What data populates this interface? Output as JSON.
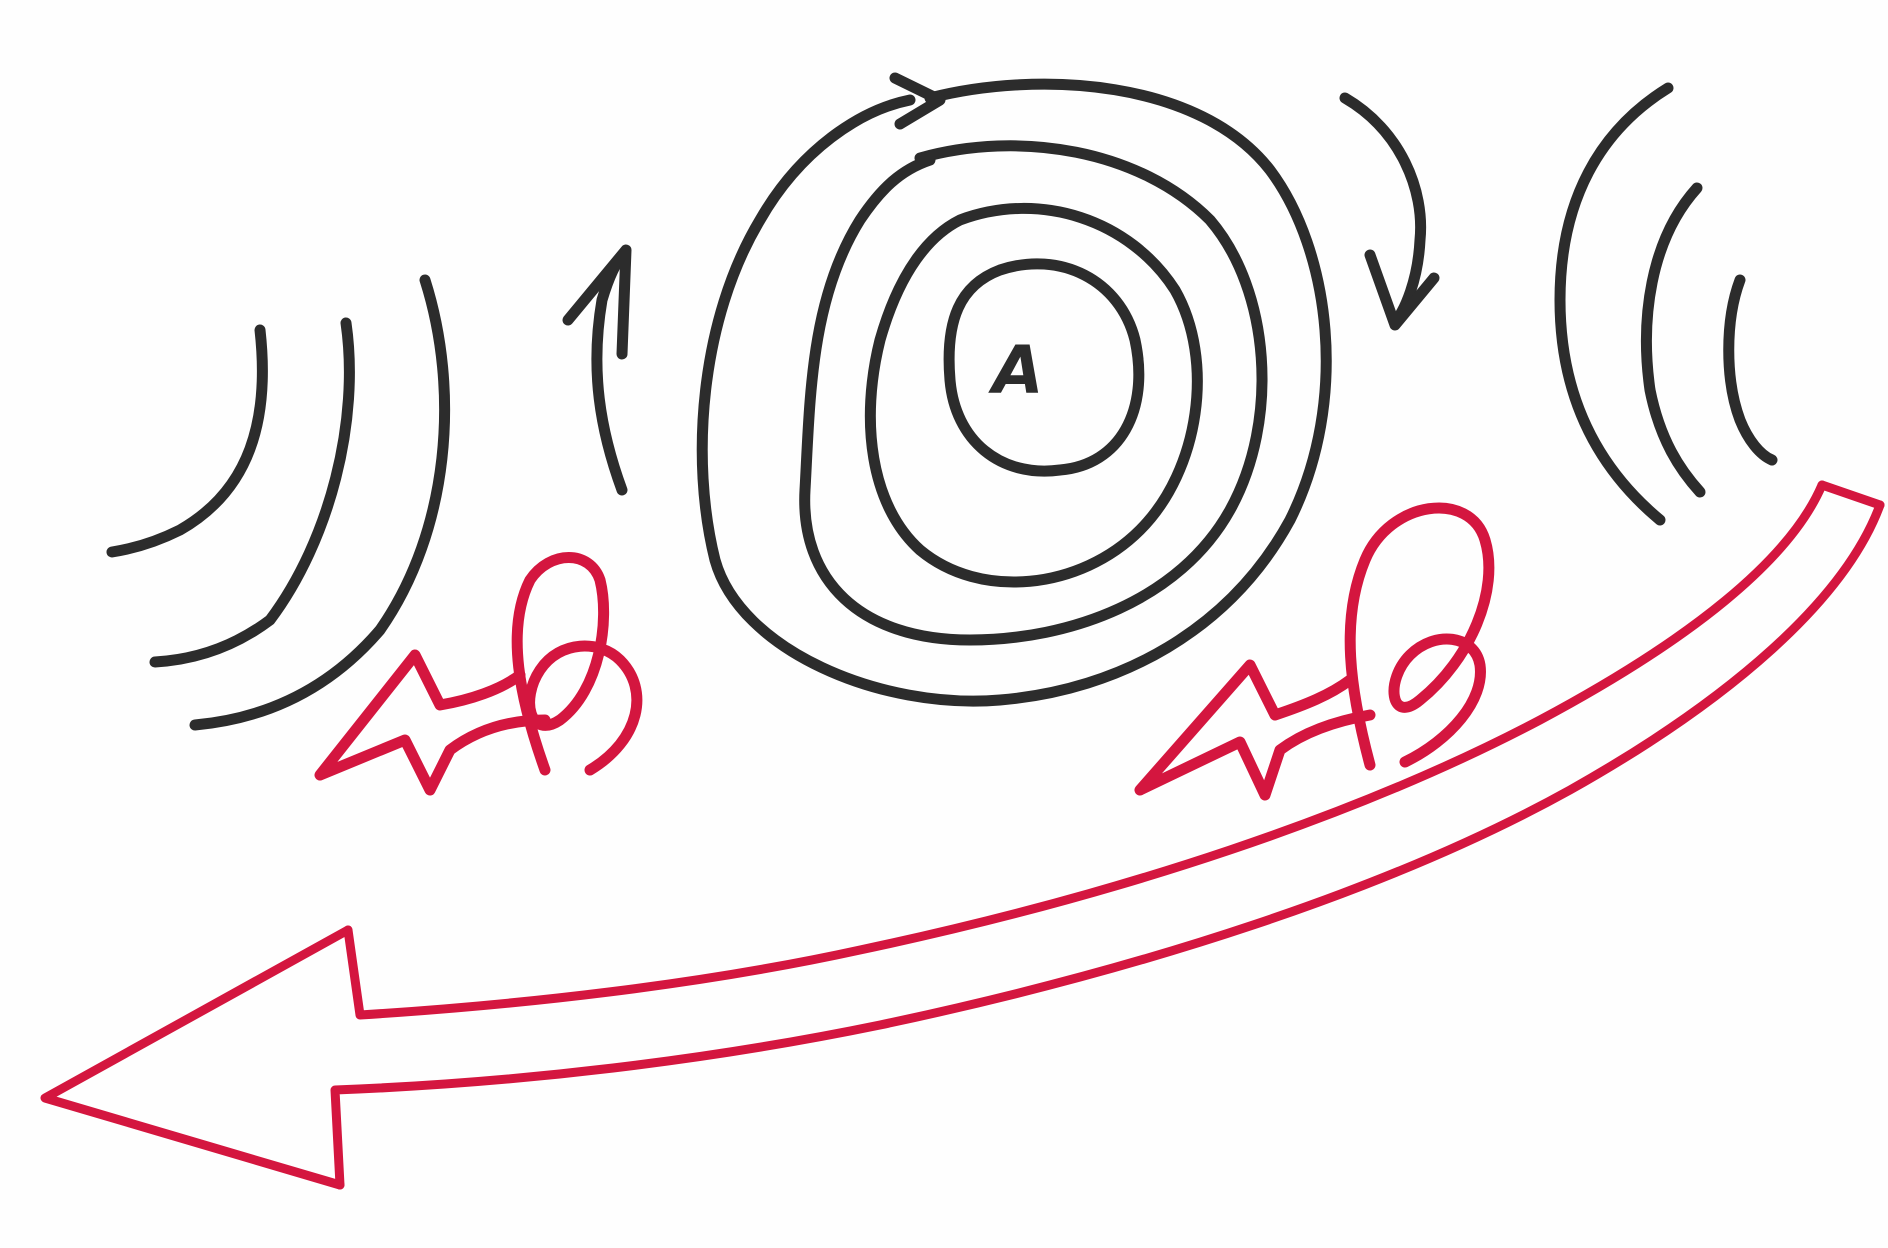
{
  "diagram": {
    "center_label": "A",
    "colors": {
      "black_ink": "#2c2c2c",
      "red_ink": "#d4163f",
      "paper": "#fefefe"
    },
    "elements": {
      "isobars": "concentric-pressure-rings",
      "rotation_arrows": "clockwise-circulation-arrows",
      "wind_lines": "curved-wind-lines",
      "flow_arrows": "red-outflow-arrows",
      "main_arrow": "red-large-curved-arrow"
    }
  }
}
